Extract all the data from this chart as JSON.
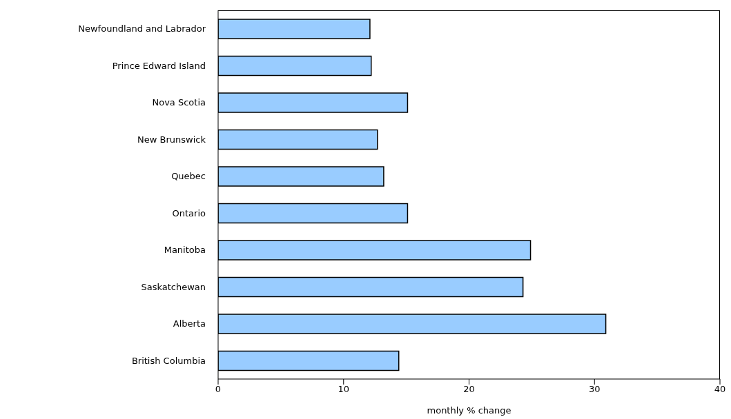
{
  "chart_data": {
    "type": "bar",
    "orientation": "horizontal",
    "xlabel": "monthly % change",
    "categories": [
      "Newfoundland and Labrador",
      "Prince Edward Island",
      "Nova Scotia",
      "New Brunswick",
      "Quebec",
      "Ontario",
      "Manitoba",
      "Saskatchewan",
      "Alberta",
      "British Columbia"
    ],
    "values": [
      12.1,
      12.2,
      15.1,
      12.7,
      13.2,
      15.1,
      24.9,
      24.3,
      30.9,
      14.4
    ],
    "color": "#99ccff",
    "xlim": [
      0,
      40
    ],
    "xticks": [
      0,
      10,
      20,
      30,
      40
    ],
    "grid": false,
    "legend": false
  }
}
